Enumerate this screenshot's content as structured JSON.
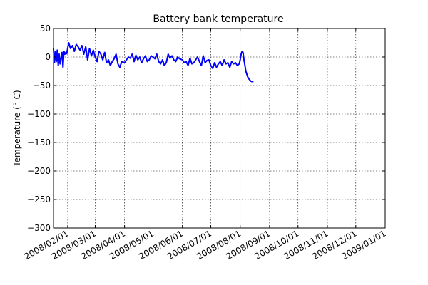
{
  "chart_data": {
    "type": "line",
    "title": "Battery bank temperature",
    "xlabel": "",
    "ylabel": "Temperature (° C)",
    "ylim": [
      -300,
      50
    ],
    "xlim": [
      "2008-01-17",
      "2009-01-01"
    ],
    "grid": true,
    "line_color": "#0000ff",
    "yticks": [
      50,
      0,
      -50,
      -100,
      -150,
      -200,
      -250,
      -300
    ],
    "ytick_labels": [
      "50",
      "0",
      "−50",
      "−100",
      "−150",
      "−200",
      "−250",
      "−300"
    ],
    "xticks": [
      "2008-02-01",
      "2008-03-01",
      "2008-04-01",
      "2008-05-01",
      "2008-06-01",
      "2008-07-01",
      "2008-08-01",
      "2008-09-01",
      "2008-10-01",
      "2008-11-01",
      "2008-12-01",
      "2009-01-01"
    ],
    "xtick_labels": [
      "2008/02/01",
      "2008/03/01",
      "2008/04/01",
      "2008/05/01",
      "2008/06/01",
      "2008/07/01",
      "2008/08/01",
      "2008/09/01",
      "2008/10/01",
      "2008/11/01",
      "2008/12/01",
      "2009/01/01"
    ],
    "series": [
      {
        "x": [
          "2008-01-17",
          "2008-01-18",
          "2008-01-19",
          "2008-01-20",
          "2008-01-21",
          "2008-01-22",
          "2008-01-23",
          "2008-01-24",
          "2008-01-25",
          "2008-01-26",
          "2008-01-27",
          "2008-01-28",
          "2008-01-29",
          "2008-01-30",
          "2008-01-31",
          "2008-02-02",
          "2008-02-04",
          "2008-02-06",
          "2008-02-08",
          "2008-02-10",
          "2008-02-12",
          "2008-02-14",
          "2008-02-16",
          "2008-02-18",
          "2008-02-20",
          "2008-02-22",
          "2008-02-24",
          "2008-02-26",
          "2008-02-28",
          "2008-03-01",
          "2008-03-03",
          "2008-03-05",
          "2008-03-07",
          "2008-03-09",
          "2008-03-11",
          "2008-03-13",
          "2008-03-15",
          "2008-03-17",
          "2008-03-19",
          "2008-03-21",
          "2008-03-23",
          "2008-03-25",
          "2008-03-27",
          "2008-03-29",
          "2008-04-01",
          "2008-04-03",
          "2008-04-05",
          "2008-04-07",
          "2008-04-09",
          "2008-04-11",
          "2008-04-13",
          "2008-04-15",
          "2008-04-17",
          "2008-04-19",
          "2008-04-21",
          "2008-04-23",
          "2008-04-25",
          "2008-04-27",
          "2008-04-29",
          "2008-05-01",
          "2008-05-03",
          "2008-05-05",
          "2008-05-07",
          "2008-05-09",
          "2008-05-11",
          "2008-05-13",
          "2008-05-15",
          "2008-05-17",
          "2008-05-19",
          "2008-05-21",
          "2008-05-23",
          "2008-05-25",
          "2008-05-27",
          "2008-05-29",
          "2008-06-01",
          "2008-06-03",
          "2008-06-05",
          "2008-06-07",
          "2008-06-09",
          "2008-06-11",
          "2008-06-13",
          "2008-06-15",
          "2008-06-17",
          "2008-06-19",
          "2008-06-21",
          "2008-06-23",
          "2008-06-25",
          "2008-06-27",
          "2008-06-29",
          "2008-07-01",
          "2008-07-03",
          "2008-07-05",
          "2008-07-07",
          "2008-07-09",
          "2008-07-11",
          "2008-07-13",
          "2008-07-15",
          "2008-07-17",
          "2008-07-19",
          "2008-07-21",
          "2008-07-23",
          "2008-07-25",
          "2008-07-27",
          "2008-07-29",
          "2008-07-31",
          "2008-08-01",
          "2008-08-02",
          "2008-08-03",
          "2008-08-04",
          "2008-08-05",
          "2008-08-06",
          "2008-08-07",
          "2008-08-08",
          "2008-08-09",
          "2008-08-10",
          "2008-08-11",
          "2008-08-12",
          "2008-08-13",
          "2008-08-14",
          "2008-08-15"
        ],
        "values": [
          15,
          -10,
          10,
          -8,
          12,
          -15,
          5,
          -12,
          -2,
          8,
          -18,
          10,
          5,
          8,
          6,
          25,
          15,
          20,
          10,
          22,
          18,
          12,
          20,
          5,
          18,
          -5,
          15,
          2,
          12,
          0,
          -8,
          10,
          5,
          -5,
          8,
          -10,
          -5,
          -15,
          -8,
          -3,
          5,
          -12,
          -18,
          -8,
          -10,
          -5,
          0,
          -2,
          5,
          -8,
          3,
          -5,
          0,
          -10,
          -3,
          2,
          -8,
          -5,
          2,
          0,
          -3,
          5,
          -8,
          -12,
          -5,
          -15,
          -10,
          5,
          -2,
          2,
          -5,
          -8,
          0,
          -3,
          -5,
          -10,
          -8,
          -15,
          -2,
          -12,
          -10,
          -5,
          0,
          -8,
          -15,
          2,
          -10,
          -6,
          -5,
          -15,
          -20,
          -10,
          -18,
          -12,
          -8,
          -15,
          -5,
          -12,
          -10,
          -18,
          -8,
          -12,
          -10,
          -15,
          -12,
          -5,
          5,
          10,
          8,
          -5,
          -15,
          -25,
          -30,
          -35,
          -38,
          -40,
          -42,
          -43,
          -43,
          -43
        ]
      }
    ]
  }
}
